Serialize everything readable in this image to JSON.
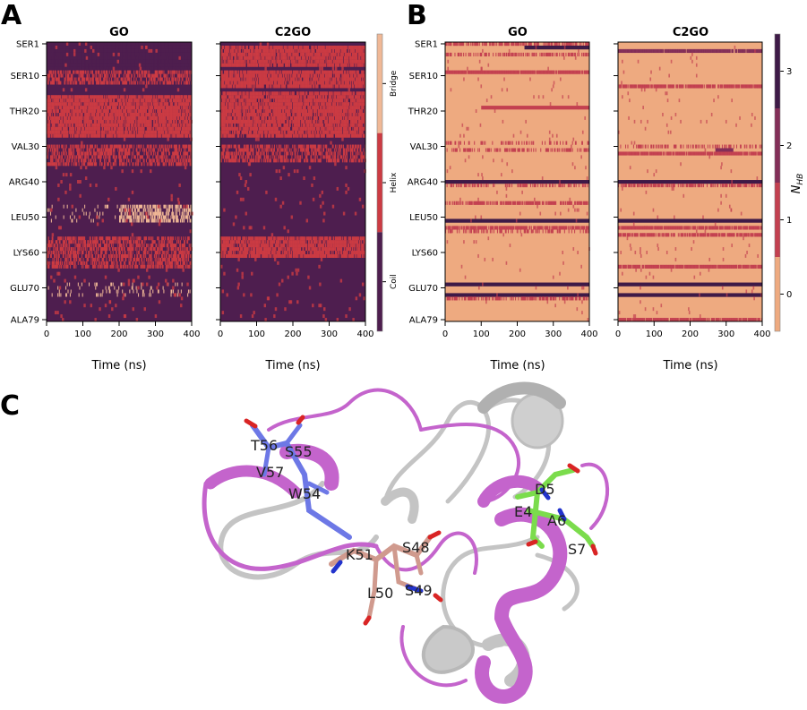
{
  "panel_letters": {
    "a": "A",
    "b": "B",
    "c": "C"
  },
  "chart_data": [
    {
      "type": "heatmap",
      "panel": "A",
      "subplots": [
        "GO",
        "C2GO"
      ],
      "y_ticks": [
        "SER1",
        "SER10",
        "THR20",
        "VAL30",
        "ARG40",
        "LEU50",
        "LYS60",
        "GLU70",
        "ALA79"
      ],
      "y_tick_residue_index": [
        1,
        10,
        20,
        30,
        40,
        50,
        60,
        70,
        79
      ],
      "xlabel": "Time (ns)",
      "x_ticks": [
        "0",
        "100",
        "200",
        "300",
        "400"
      ],
      "xlim": [
        0,
        400
      ],
      "colorbar_labels": [
        "Bridge",
        "Helix",
        "Coil"
      ],
      "colors": {
        "Coil": "#4e1e4f",
        "Helix": "#cc3b43",
        "Bridge": "#f0b896"
      },
      "dominant_states": {
        "GO": [
          {
            "residues": [
              1,
              8
            ],
            "state": "Coil"
          },
          {
            "residues": [
              9,
              12
            ],
            "state": "Helix",
            "note": "intermittent"
          },
          {
            "residues": [
              16,
              27
            ],
            "state": "Helix"
          },
          {
            "residues": [
              30,
              35
            ],
            "state": "Helix",
            "note": "intermittent"
          },
          {
            "residues": [
              47,
              51
            ],
            "state": "Bridge",
            "note": "intermittent after 200 ns"
          },
          {
            "residues": [
              56,
              64
            ],
            "state": "Helix",
            "note": "intermittent"
          },
          {
            "residues": [
              69,
              72
            ],
            "state": "Bridge",
            "note": "sparse"
          }
        ],
        "C2GO": [
          {
            "residues": [
              2,
              7
            ],
            "state": "Helix"
          },
          {
            "residues": [
              9,
              13
            ],
            "state": "Helix"
          },
          {
            "residues": [
              15,
              27
            ],
            "state": "Helix"
          },
          {
            "residues": [
              30,
              34
            ],
            "state": "Helix",
            "note": "intermittent"
          },
          {
            "residues": [
              56,
              61
            ],
            "state": "Helix"
          }
        ]
      }
    },
    {
      "type": "heatmap",
      "panel": "B",
      "subplots": [
        "GO",
        "C2GO"
      ],
      "y_ticks": [
        "SER1",
        "SER10",
        "THR20",
        "VAL30",
        "ARG40",
        "LEU50",
        "LYS60",
        "GLU70",
        "ALA79"
      ],
      "y_tick_residue_index": [
        1,
        10,
        20,
        30,
        40,
        50,
        60,
        70,
        79
      ],
      "xlabel": "Time (ns)",
      "x_ticks": [
        "0",
        "100",
        "200",
        "300",
        "400"
      ],
      "xlim": [
        0,
        400
      ],
      "colorbar_title": "N",
      "colorbar_title_sub": "HB",
      "colorbar_ticks": [
        "0",
        "1",
        "2",
        "3"
      ],
      "colors": [
        "#eeaa80",
        "#c34050",
        "#832e58",
        "#3e1a47"
      ],
      "hbond_rows": {
        "GO": [
          {
            "residue": 1,
            "value": 1,
            "density": 0.6
          },
          {
            "residue": 2,
            "value": 3,
            "start": 220,
            "end": 400
          },
          {
            "residue": 4,
            "value": 1,
            "density": 0.5
          },
          {
            "residue": 9,
            "value": 1,
            "density": 0.95
          },
          {
            "residue": 19,
            "value": 1,
            "start": 100,
            "end": 400
          },
          {
            "residue": 29,
            "value": 1,
            "density": 0.3
          },
          {
            "residue": 31,
            "value": 1,
            "density": 0.5
          },
          {
            "residue": 40,
            "value": 3
          },
          {
            "residue": 41,
            "value": 1,
            "density": 0.5
          },
          {
            "residue": 46,
            "value": 1,
            "density": 0.7
          },
          {
            "residue": 51,
            "value": 3
          },
          {
            "residue": 53,
            "value": 1,
            "density": 0.85
          },
          {
            "residue": 54,
            "value": 1,
            "density": 0.4
          },
          {
            "residue": 69,
            "value": 3
          },
          {
            "residue": 72,
            "value": 3
          },
          {
            "residue": 73,
            "value": 1,
            "density": 0.6
          }
        ],
        "C2GO": [
          {
            "residue": 3,
            "value": 2,
            "density": 0.95
          },
          {
            "residue": 13,
            "value": 1,
            "density": 0.9
          },
          {
            "residue": 30,
            "value": 1,
            "density": 0.4
          },
          {
            "residue": 31,
            "value": 2,
            "start": 270,
            "end": 320
          },
          {
            "residue": 32,
            "value": 1,
            "density": 0.9
          },
          {
            "residue": 40,
            "value": 3
          },
          {
            "residue": 41,
            "value": 1,
            "density": 0.6
          },
          {
            "residue": 51,
            "value": 3
          },
          {
            "residue": 53,
            "value": 1,
            "density": 0.9
          },
          {
            "residue": 55,
            "value": 1,
            "density": 0.8
          },
          {
            "residue": 64,
            "value": 1,
            "density": 0.9
          },
          {
            "residue": 69,
            "value": 3
          },
          {
            "residue": 72,
            "value": 3
          },
          {
            "residue": 79,
            "value": 1,
            "density": 0.9
          }
        ]
      }
    }
  ],
  "structure": {
    "caption_panel": "C",
    "residue_labels": [
      "T56",
      "S55",
      "V57",
      "W54",
      "K51",
      "S48",
      "L50",
      "S49",
      "D5",
      "E4",
      "A6",
      "S7"
    ],
    "colors": {
      "GO": "#c66dd0",
      "C2GO": "#c7c7c7",
      "site1": "#6d78e6",
      "site2": "#d09a8e",
      "site3": "#7bdc4c",
      "oxygen": "#d92424",
      "nitrogen": "#2233cc"
    }
  }
}
